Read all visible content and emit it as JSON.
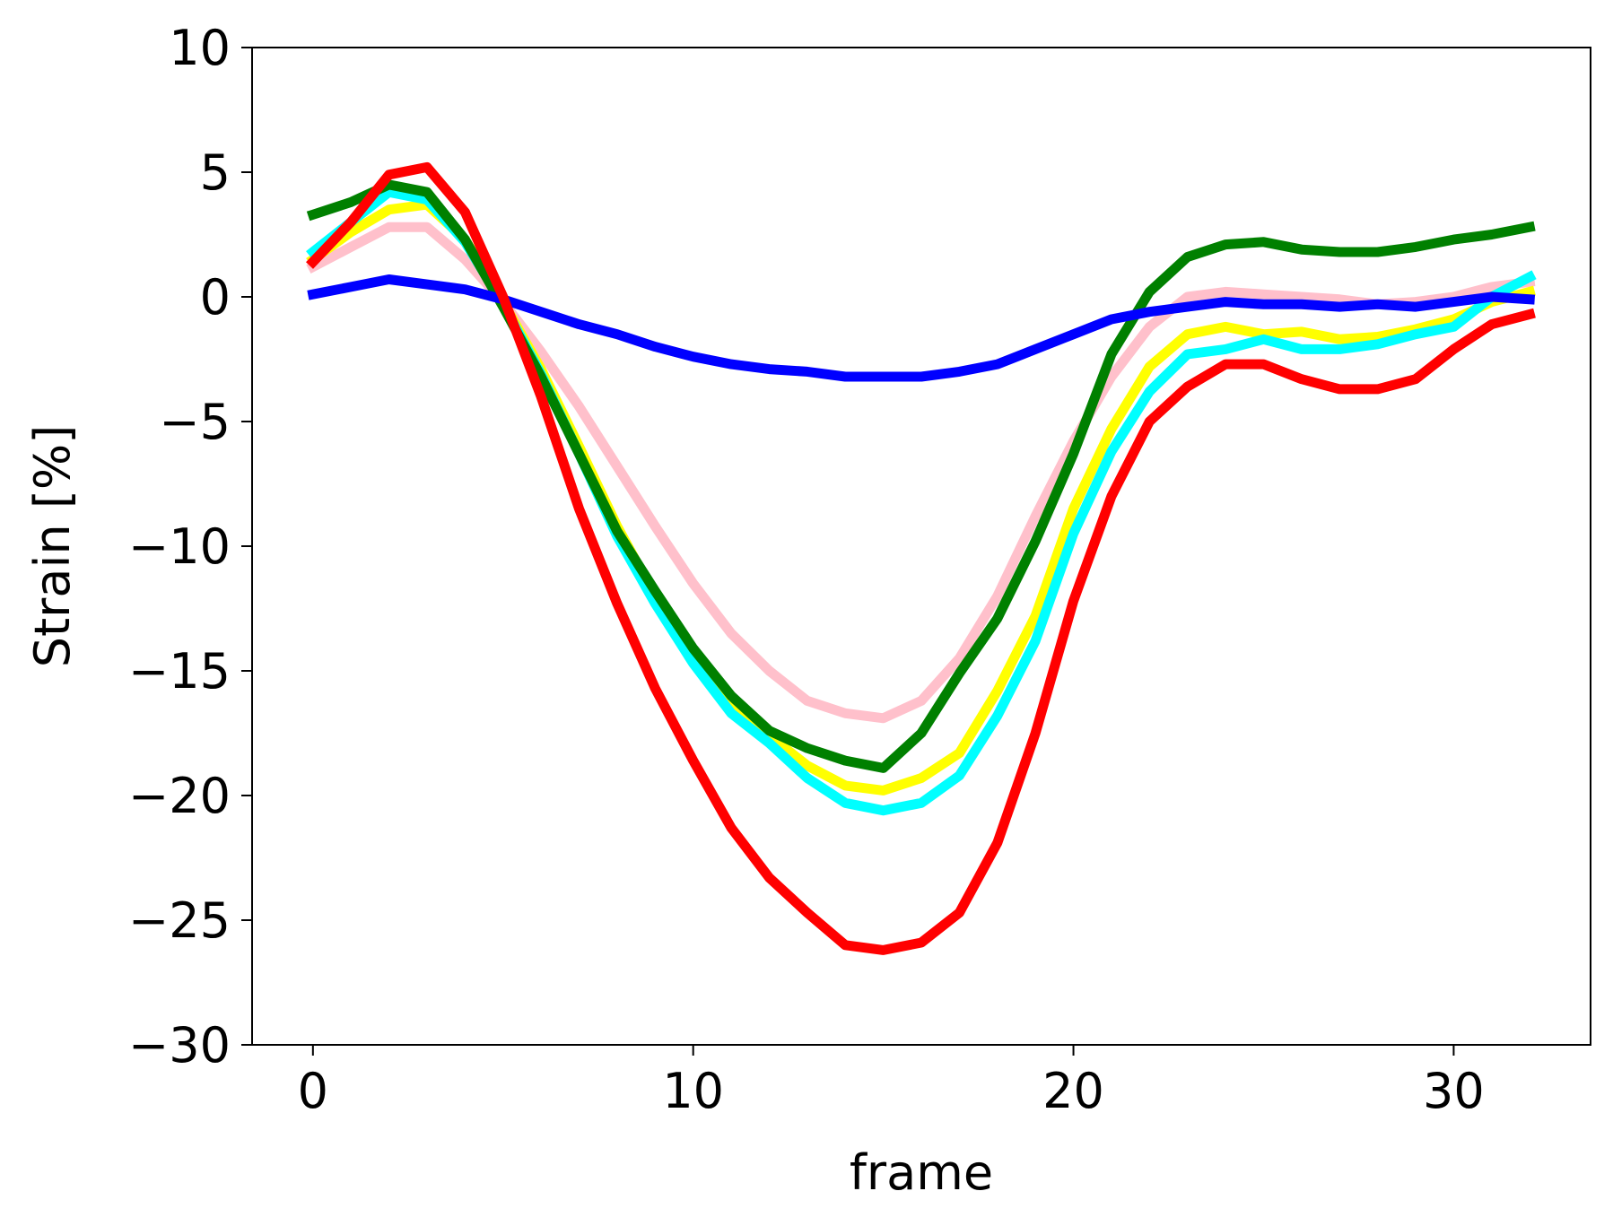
{
  "chart_data": {
    "type": "line",
    "title": "",
    "xlabel": "frame",
    "ylabel": "Strain [%]",
    "xlim": [
      -1.6,
      33.6
    ],
    "ylim": [
      -30,
      10
    ],
    "xticks": [
      0,
      10,
      20,
      30
    ],
    "xtick_labels": [
      "0",
      "10",
      "20",
      "30"
    ],
    "yticks": [
      10,
      5,
      0,
      -5,
      -10,
      -15,
      -20,
      -25,
      -30
    ],
    "ytick_labels": [
      "10",
      "5",
      "0",
      "−5",
      "−10",
      "−15",
      "−20",
      "−25",
      "−30"
    ],
    "grid": false,
    "legend": "none",
    "x": [
      0,
      1,
      2,
      3,
      4,
      5,
      6,
      7,
      8,
      9,
      10,
      11,
      12,
      13,
      14,
      15,
      16,
      17,
      18,
      19,
      20,
      21,
      22,
      23,
      24,
      25,
      26,
      27,
      28,
      29,
      30,
      31,
      32
    ],
    "series": [
      {
        "color": "#ffc0cb",
        "values": [
          1.2,
          2.0,
          2.8,
          2.8,
          1.5,
          -0.2,
          -2.2,
          -4.4,
          -6.8,
          -9.2,
          -11.5,
          -13.5,
          -15.0,
          -16.2,
          -16.7,
          -16.9,
          -16.2,
          -14.5,
          -12.0,
          -8.8,
          -5.8,
          -3.2,
          -1.2,
          0.0,
          0.2,
          0.1,
          0.0,
          -0.1,
          -0.3,
          -0.2,
          0.0,
          0.4,
          0.6
        ]
      },
      {
        "color": "#ffff00",
        "values": [
          1.5,
          2.6,
          3.5,
          3.7,
          2.3,
          -0.2,
          -2.9,
          -6.0,
          -9.2,
          -12.0,
          -14.5,
          -16.3,
          -17.6,
          -18.8,
          -19.6,
          -19.8,
          -19.3,
          -18.3,
          -15.8,
          -12.8,
          -8.5,
          -5.3,
          -2.8,
          -1.5,
          -1.2,
          -1.5,
          -1.4,
          -1.7,
          -1.6,
          -1.3,
          -0.9,
          -0.2,
          0.2
        ]
      },
      {
        "color": "#00ffff",
        "values": [
          1.8,
          3.0,
          4.2,
          3.9,
          2.2,
          -0.3,
          -3.1,
          -6.3,
          -9.6,
          -12.3,
          -14.7,
          -16.7,
          -17.9,
          -19.3,
          -20.3,
          -20.6,
          -20.3,
          -19.2,
          -16.8,
          -13.8,
          -9.5,
          -6.2,
          -3.8,
          -2.3,
          -2.1,
          -1.7,
          -2.1,
          -2.1,
          -1.9,
          -1.5,
          -1.2,
          0.0,
          0.8
        ]
      },
      {
        "color": "#008000",
        "values": [
          3.3,
          3.8,
          4.5,
          4.2,
          2.3,
          -0.4,
          -3.2,
          -6.3,
          -9.4,
          -11.8,
          -14.1,
          -16.0,
          -17.4,
          -18.1,
          -18.6,
          -18.9,
          -17.5,
          -15.1,
          -12.9,
          -9.8,
          -6.3,
          -2.3,
          0.2,
          1.6,
          2.1,
          2.2,
          1.9,
          1.8,
          1.8,
          2.0,
          2.3,
          2.5,
          2.8
        ]
      },
      {
        "color": "#0000ff",
        "values": [
          0.1,
          0.4,
          0.7,
          0.5,
          0.3,
          -0.1,
          -0.6,
          -1.1,
          -1.5,
          -2.0,
          -2.4,
          -2.7,
          -2.9,
          -3.0,
          -3.2,
          -3.2,
          -3.2,
          -3.0,
          -2.7,
          -2.1,
          -1.5,
          -0.9,
          -0.6,
          -0.4,
          -0.2,
          -0.3,
          -0.3,
          -0.4,
          -0.3,
          -0.4,
          -0.2,
          0.0,
          -0.1
        ]
      },
      {
        "color": "#ff0000",
        "values": [
          1.4,
          3.0,
          4.9,
          5.2,
          3.4,
          0.0,
          -4.0,
          -8.5,
          -12.3,
          -15.7,
          -18.6,
          -21.3,
          -23.3,
          -24.7,
          -26.0,
          -26.2,
          -25.9,
          -24.7,
          -21.9,
          -17.5,
          -12.2,
          -8.0,
          -5.0,
          -3.6,
          -2.7,
          -2.7,
          -3.3,
          -3.7,
          -3.7,
          -3.3,
          -2.1,
          -1.1,
          -0.7
        ]
      }
    ]
  }
}
